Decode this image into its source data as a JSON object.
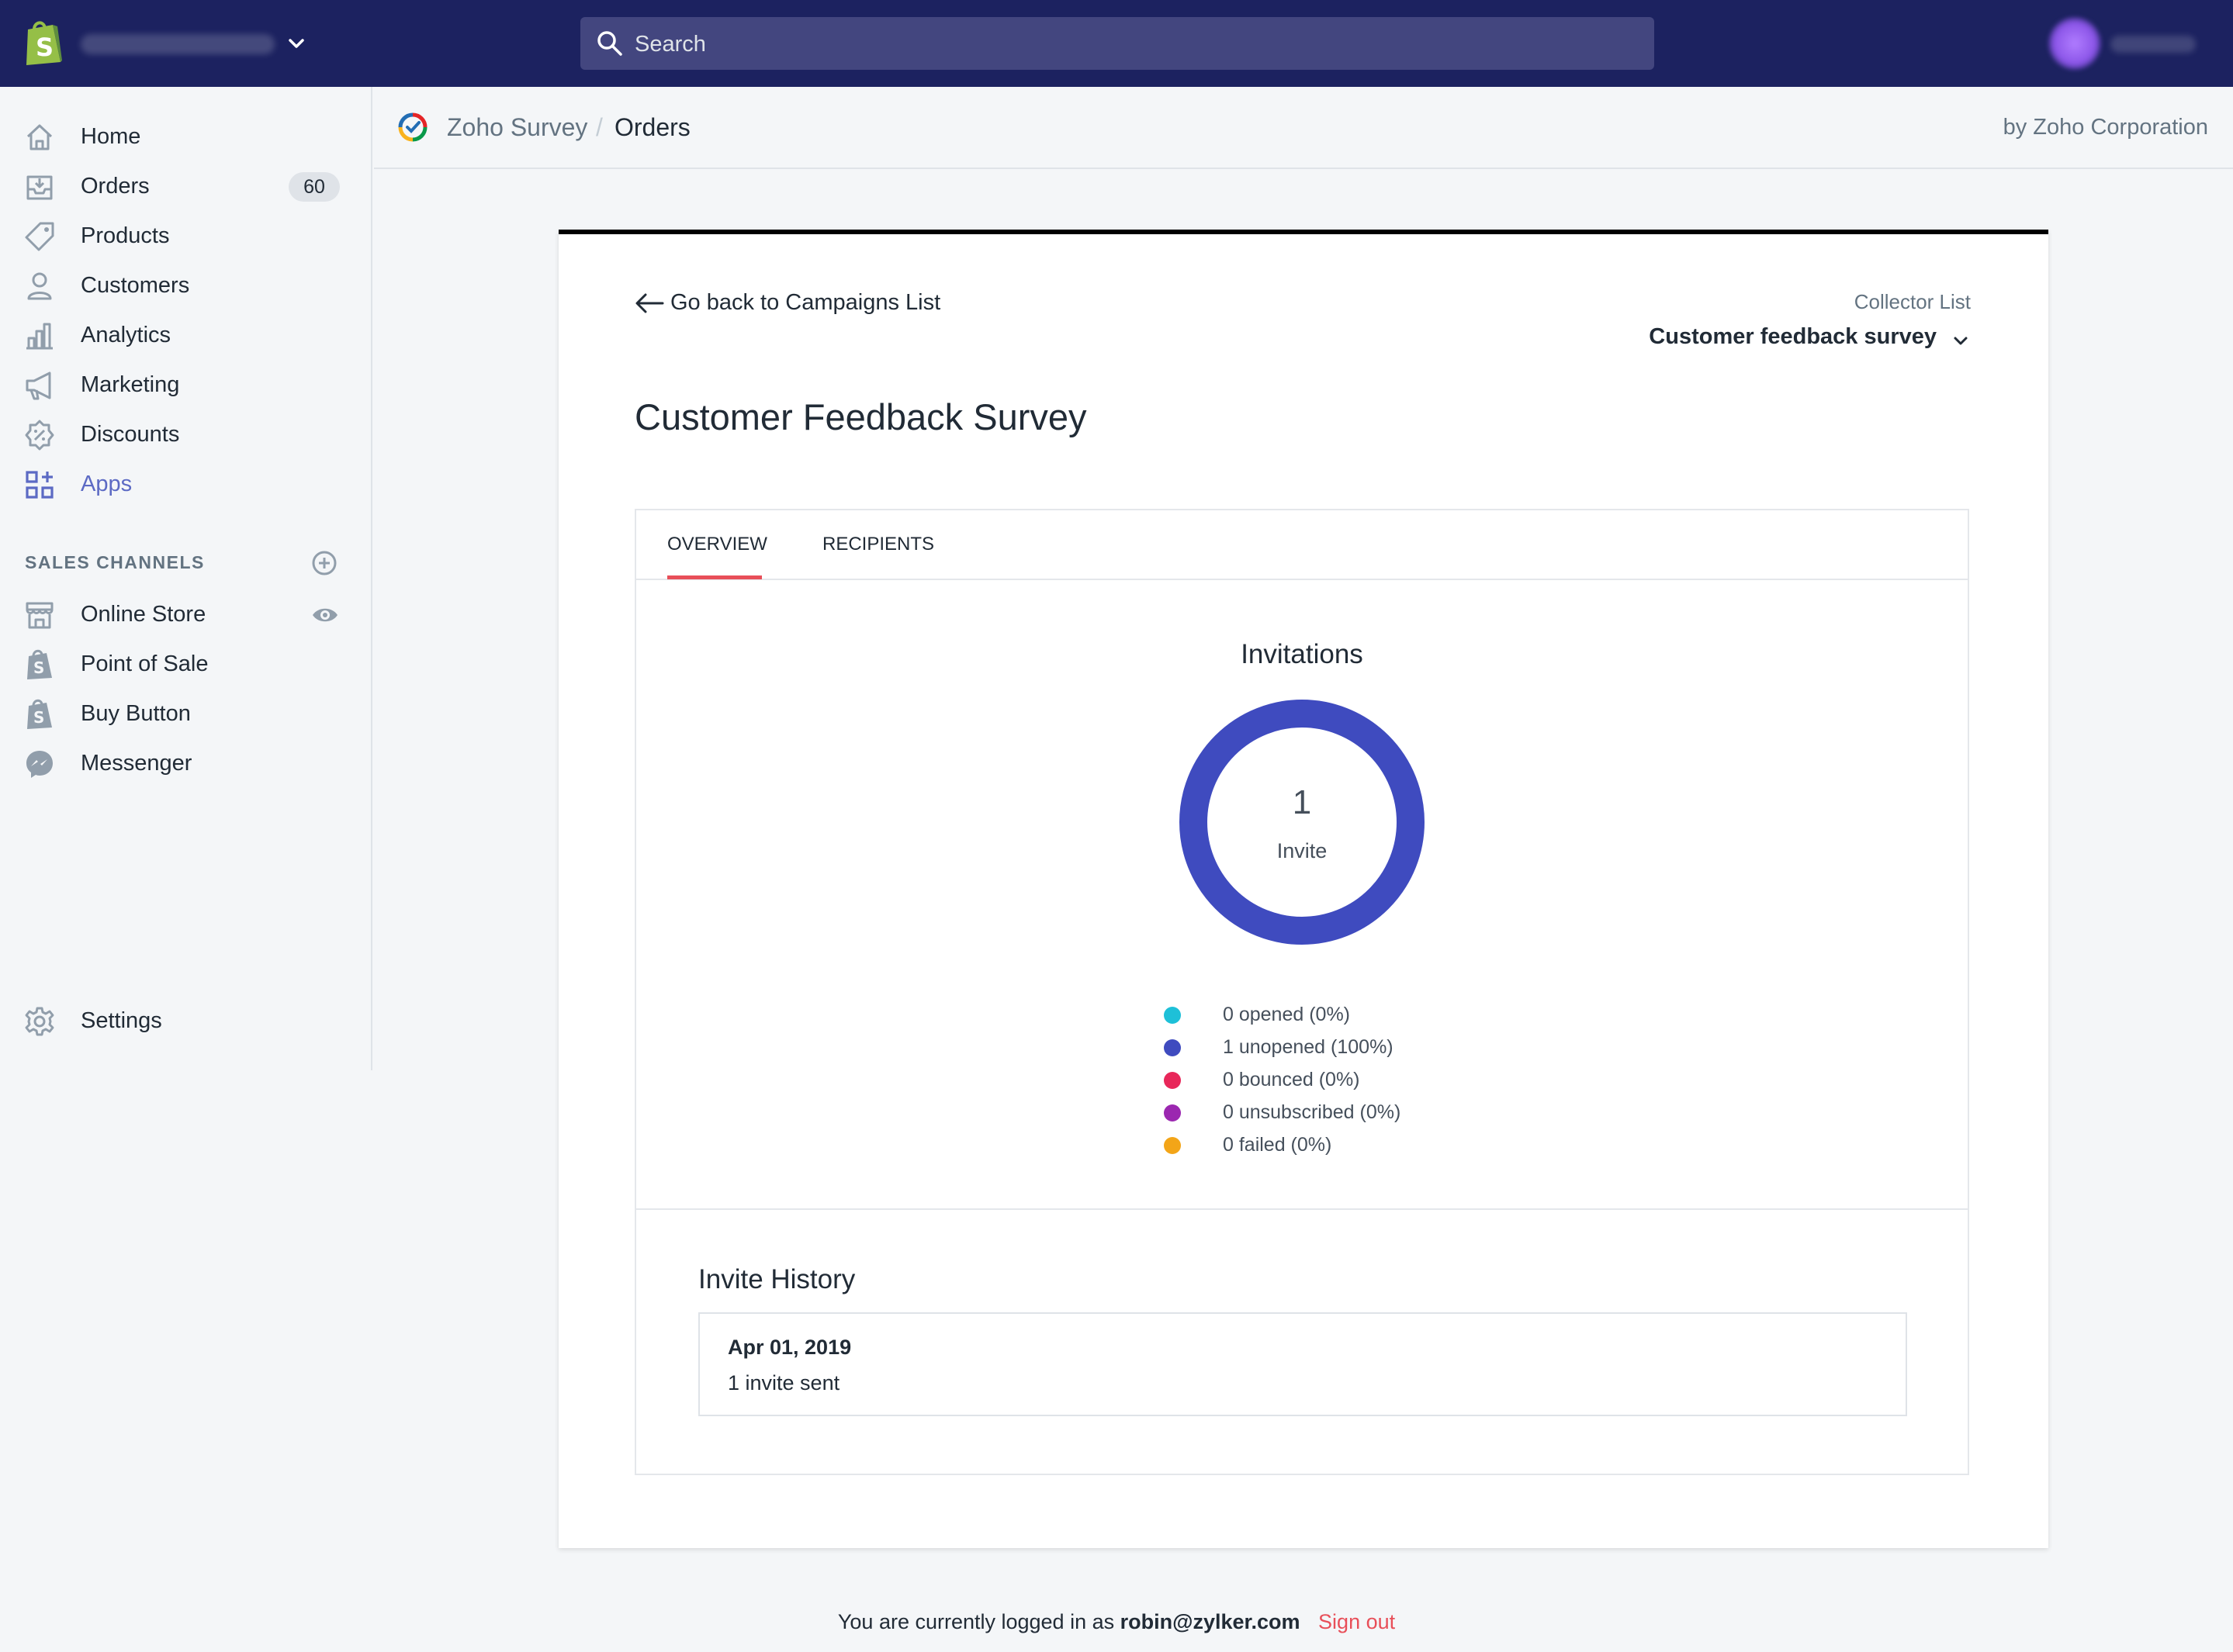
{
  "topbar": {
    "search_placeholder": "Search"
  },
  "sidebar": {
    "items": [
      {
        "label": "Home",
        "icon": "home-icon"
      },
      {
        "label": "Orders",
        "icon": "orders-icon",
        "badge": "60"
      },
      {
        "label": "Products",
        "icon": "tag-icon"
      },
      {
        "label": "Customers",
        "icon": "person-icon"
      },
      {
        "label": "Analytics",
        "icon": "bar-chart-icon"
      },
      {
        "label": "Marketing",
        "icon": "megaphone-icon"
      },
      {
        "label": "Discounts",
        "icon": "discount-icon"
      },
      {
        "label": "Apps",
        "icon": "apps-icon",
        "active": true
      }
    ],
    "sales_channels_heading": "SALES CHANNELS",
    "channels": [
      {
        "label": "Online Store",
        "icon": "store-icon"
      },
      {
        "label": "Point of Sale",
        "icon": "shopify-bag-icon"
      },
      {
        "label": "Buy Button",
        "icon": "shopify-bag-icon"
      },
      {
        "label": "Messenger",
        "icon": "messenger-icon"
      }
    ],
    "settings_label": "Settings"
  },
  "app_header": {
    "app_name": "Zoho Survey",
    "separator": "/",
    "page": "Orders",
    "by_line": "by Zoho Corporation"
  },
  "card": {
    "back_link": "Go back to Campaigns List",
    "collector_label": "Collector List",
    "collector_value": "Customer feedback survey",
    "title": "Customer Feedback Survey",
    "tabs": [
      "OVERVIEW",
      "RECIPIENTS"
    ],
    "active_tab": "OVERVIEW"
  },
  "invitations": {
    "title": "Invitations",
    "total": "1",
    "total_label": "Invite",
    "ring_color": "#3f4bbf",
    "legend": [
      {
        "text": "0 opened (0%)",
        "color": "#1ec0d8"
      },
      {
        "text": "1 unopened (100%)",
        "color": "#3f4bbf"
      },
      {
        "text": "0 bounced (0%)",
        "color": "#e8275a"
      },
      {
        "text": "0 unsubscribed (0%)",
        "color": "#9b27b0"
      },
      {
        "text": "0 failed (0%)",
        "color": "#f3a518"
      }
    ]
  },
  "history": {
    "title": "Invite History",
    "entries": [
      {
        "date": "Apr 01, 2019",
        "count": "1 invite sent"
      }
    ]
  },
  "footer": {
    "prefix": "You are currently logged in as",
    "email": "robin@zylker.com",
    "signout": "Sign out"
  },
  "colors": {
    "topbar": "#1c2260",
    "accent": "#5c6ac4",
    "tab_underline": "#e84f59"
  }
}
